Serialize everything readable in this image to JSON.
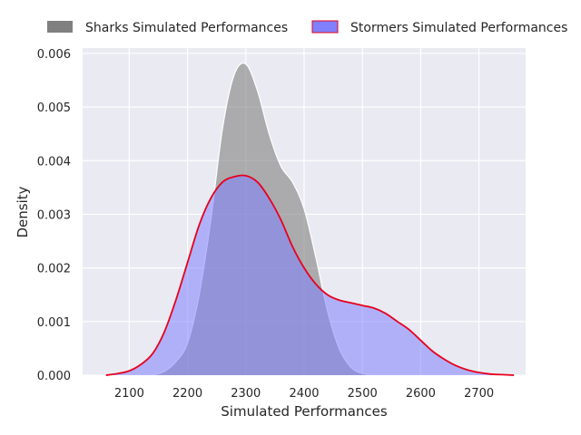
{
  "chart_data": {
    "type": "area",
    "title": "",
    "xlabel": "Simulated Performances",
    "ylabel": "Density",
    "xlim": [
      2020,
      2780
    ],
    "ylim": [
      0,
      0.0061
    ],
    "xticks": [
      2100,
      2200,
      2300,
      2400,
      2500,
      2600,
      2700
    ],
    "yticks": [
      0.0,
      0.001,
      0.002,
      0.003,
      0.004,
      0.005,
      0.006
    ],
    "xtick_labels": [
      "2100",
      "2200",
      "2300",
      "2400",
      "2500",
      "2600",
      "2700"
    ],
    "ytick_labels": [
      "0.000",
      "0.001",
      "0.002",
      "0.003",
      "0.004",
      "0.005",
      "0.006"
    ],
    "grid": true,
    "legend_position": "top, above plot",
    "series": [
      {
        "name": "Sharks Simulated Performances",
        "fill_color": "#808080",
        "line_color": "#ffffff",
        "x": [
          2140,
          2160,
          2180,
          2200,
          2220,
          2240,
          2260,
          2280,
          2300,
          2320,
          2340,
          2360,
          2380,
          2400,
          2420,
          2440,
          2460,
          2480,
          2500,
          2520
        ],
        "y": [
          0.0,
          7e-05,
          0.00025,
          0.0006,
          0.0015,
          0.0029,
          0.0046,
          0.0056,
          0.0058,
          0.0053,
          0.0045,
          0.0039,
          0.0036,
          0.0031,
          0.0022,
          0.0012,
          0.0005,
          0.00015,
          3e-05,
          0.0
        ]
      },
      {
        "name": "Stormers Simulated Performances",
        "fill_color": "#8080ff",
        "line_color": "#e8001c",
        "x": [
          2060,
          2080,
          2100,
          2120,
          2140,
          2160,
          2180,
          2200,
          2220,
          2240,
          2260,
          2280,
          2300,
          2320,
          2340,
          2360,
          2380,
          2400,
          2420,
          2440,
          2460,
          2480,
          2500,
          2520,
          2540,
          2560,
          2580,
          2600,
          2620,
          2640,
          2660,
          2680,
          2700,
          2720,
          2740,
          2760
        ],
        "y": [
          0.0,
          3e-05,
          8e-05,
          0.0002,
          0.0004,
          0.0008,
          0.0014,
          0.0021,
          0.0028,
          0.0033,
          0.0036,
          0.0037,
          0.00372,
          0.0036,
          0.0033,
          0.0029,
          0.0024,
          0.002,
          0.0017,
          0.0015,
          0.0014,
          0.00135,
          0.0013,
          0.00125,
          0.00115,
          0.001,
          0.00085,
          0.00065,
          0.00045,
          0.0003,
          0.00018,
          0.0001,
          5e-05,
          2e-05,
          1e-05,
          0.0
        ]
      }
    ]
  }
}
